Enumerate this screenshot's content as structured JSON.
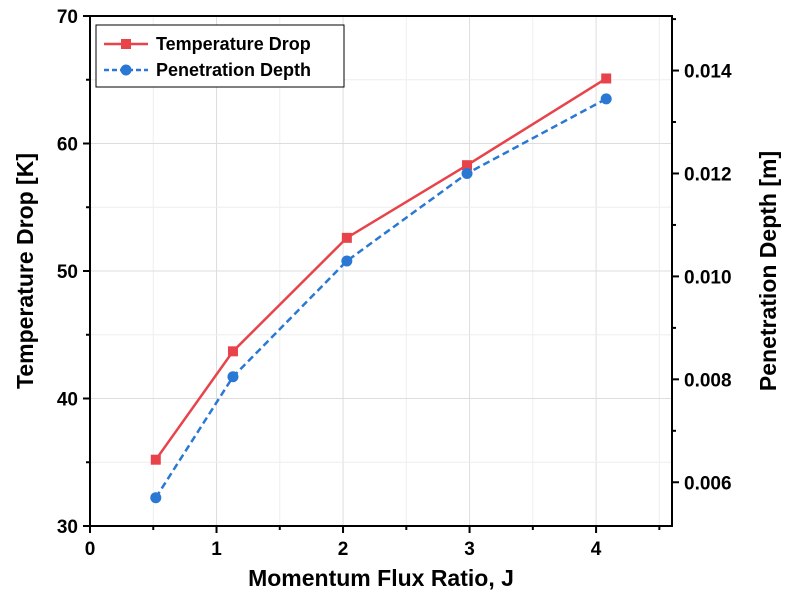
{
  "chart_data": {
    "type": "line",
    "xlabel": "Momentum Flux Ratio, J",
    "ylabel_left": "Temperature Drop [K]",
    "ylabel_right": "Penetration Depth [m]",
    "xlim": [
      0,
      4.6
    ],
    "ylim_left": [
      30,
      70
    ],
    "ylim_right": [
      0.00515,
      0.01506
    ],
    "x_ticks": [
      0,
      1,
      2,
      3,
      4
    ],
    "y_ticks_left": [
      30,
      40,
      50,
      60,
      70
    ],
    "y_ticks_right": [
      0.006,
      0.008,
      0.01,
      0.012,
      0.014
    ],
    "x_tick_labels": [
      "0",
      "1",
      "2",
      "3",
      "4"
    ],
    "y_tick_labels_left": [
      "30",
      "40",
      "50",
      "60",
      "70"
    ],
    "y_tick_labels_right": [
      "0.006",
      "0.008",
      "0.010",
      "0.012",
      "0.014"
    ],
    "grid": true,
    "legend_position": "top-left",
    "series": [
      {
        "name": "Temperature Drop",
        "axis": "left",
        "color": "#e8434a",
        "line_style": "solid",
        "marker": "square",
        "x": [
          0.52,
          1.13,
          2.03,
          2.98,
          4.08
        ],
        "y": [
          35.2,
          43.7,
          52.6,
          58.3,
          65.1
        ]
      },
      {
        "name": "Penetration Depth",
        "axis": "right",
        "color": "#2a78d4",
        "line_style": "dashed",
        "marker": "circle",
        "x": [
          0.52,
          1.13,
          2.03,
          2.98,
          4.08
        ],
        "y": [
          0.0057,
          0.00805,
          0.0103,
          0.012,
          0.01345
        ]
      }
    ]
  }
}
